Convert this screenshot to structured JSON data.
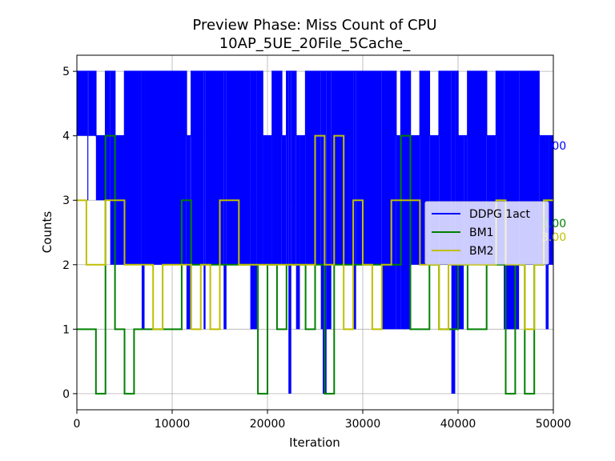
{
  "chart_data": {
    "type": "line",
    "title": "Preview Phase: Miss Count of CPU",
    "subtitle": "10AP_5UE_20File_5Cache_",
    "xlabel": "Iteration",
    "ylabel": "Counts",
    "xlim": [
      0,
      50000
    ],
    "ylim": [
      -0.25,
      5.25
    ],
    "xticks": [
      "0",
      "10000",
      "20000",
      "30000",
      "40000",
      "50000"
    ],
    "yticks": [
      "0",
      "1",
      "2",
      "3",
      "4",
      "5"
    ],
    "grid": true,
    "legend_position": "center-right",
    "series": [
      {
        "name": "DDPG 1act",
        "color": "#0000ff",
        "end_label": "4.00",
        "min_band": [
          [
            0,
            4
          ],
          [
            1100,
            3
          ],
          [
            1200,
            4
          ],
          [
            2000,
            3
          ],
          [
            3500,
            2
          ],
          [
            4200,
            2
          ],
          [
            6800,
            1
          ],
          [
            7100,
            2
          ],
          [
            11500,
            1
          ],
          [
            11900,
            2
          ],
          [
            13300,
            1
          ],
          [
            13500,
            2
          ],
          [
            15400,
            1
          ],
          [
            15700,
            2
          ],
          [
            18200,
            1
          ],
          [
            18900,
            2
          ],
          [
            22200,
            0
          ],
          [
            22500,
            2
          ],
          [
            23000,
            1
          ],
          [
            23400,
            2
          ],
          [
            25600,
            1
          ],
          [
            25800,
            0
          ],
          [
            26200,
            1
          ],
          [
            26700,
            2
          ],
          [
            29000,
            1
          ],
          [
            29300,
            2
          ],
          [
            32000,
            1
          ],
          [
            35000,
            2
          ],
          [
            39300,
            0
          ],
          [
            39700,
            1
          ],
          [
            40600,
            2
          ],
          [
            44800,
            1
          ],
          [
            46400,
            2
          ],
          [
            49200,
            1
          ],
          [
            49500,
            2
          ]
        ],
        "max_band": [
          [
            0,
            5
          ],
          [
            2000,
            4
          ],
          [
            3000,
            5
          ],
          [
            4000,
            4
          ],
          [
            5000,
            5
          ],
          [
            11500,
            4
          ],
          [
            12000,
            5
          ],
          [
            19500,
            4
          ],
          [
            20500,
            5
          ],
          [
            21500,
            4
          ],
          [
            22000,
            5
          ],
          [
            23000,
            4
          ],
          [
            24000,
            5
          ],
          [
            33500,
            4
          ],
          [
            34000,
            5
          ],
          [
            35000,
            4
          ],
          [
            36000,
            5
          ],
          [
            37000,
            4
          ],
          [
            38000,
            5
          ],
          [
            40000,
            4
          ],
          [
            41000,
            5
          ],
          [
            43000,
            4
          ],
          [
            44000,
            5
          ],
          [
            48500,
            4
          ],
          [
            50000,
            4
          ]
        ]
      },
      {
        "name": "BM1",
        "color": "#008000",
        "end_label": "3.00",
        "points": [
          [
            0,
            1
          ],
          [
            2000,
            1
          ],
          [
            2000,
            0
          ],
          [
            3000,
            0
          ],
          [
            3000,
            4
          ],
          [
            4000,
            4
          ],
          [
            4000,
            1
          ],
          [
            5000,
            1
          ],
          [
            5000,
            0
          ],
          [
            6000,
            0
          ],
          [
            6000,
            1
          ],
          [
            11000,
            1
          ],
          [
            11000,
            3
          ],
          [
            12000,
            3
          ],
          [
            12000,
            2
          ],
          [
            19000,
            2
          ],
          [
            19000,
            0
          ],
          [
            20000,
            0
          ],
          [
            20000,
            2
          ],
          [
            21000,
            2
          ],
          [
            21000,
            1
          ],
          [
            22000,
            1
          ],
          [
            22000,
            2
          ],
          [
            24000,
            2
          ],
          [
            24000,
            1
          ],
          [
            25000,
            1
          ],
          [
            25000,
            2
          ],
          [
            26000,
            2
          ],
          [
            26000,
            0
          ],
          [
            27000,
            0
          ],
          [
            27000,
            2
          ],
          [
            34000,
            2
          ],
          [
            34000,
            4
          ],
          [
            35000,
            4
          ],
          [
            35000,
            1
          ],
          [
            37000,
            1
          ],
          [
            37000,
            2
          ],
          [
            38000,
            2
          ],
          [
            38000,
            1
          ],
          [
            40000,
            1
          ],
          [
            40000,
            2
          ],
          [
            41000,
            2
          ],
          [
            41000,
            1
          ],
          [
            43000,
            1
          ],
          [
            43000,
            2
          ],
          [
            45000,
            2
          ],
          [
            45000,
            0
          ],
          [
            46000,
            0
          ],
          [
            46000,
            2
          ],
          [
            47000,
            2
          ],
          [
            47000,
            0
          ],
          [
            48000,
            0
          ],
          [
            48000,
            2
          ],
          [
            49000,
            2
          ],
          [
            49000,
            3
          ],
          [
            50000,
            3
          ]
        ]
      },
      {
        "name": "BM2",
        "color": "#bfbf00",
        "end_label": "3.00",
        "points": [
          [
            0,
            3
          ],
          [
            1000,
            3
          ],
          [
            1000,
            2
          ],
          [
            3000,
            2
          ],
          [
            3000,
            3
          ],
          [
            5000,
            3
          ],
          [
            5000,
            2
          ],
          [
            8000,
            2
          ],
          [
            8000,
            1
          ],
          [
            9000,
            1
          ],
          [
            9000,
            2
          ],
          [
            12000,
            2
          ],
          [
            12000,
            1
          ],
          [
            13000,
            1
          ],
          [
            13000,
            2
          ],
          [
            14000,
            2
          ],
          [
            14000,
            1
          ],
          [
            15000,
            1
          ],
          [
            15000,
            3
          ],
          [
            17000,
            3
          ],
          [
            17000,
            2
          ],
          [
            25000,
            2
          ],
          [
            25000,
            4
          ],
          [
            26000,
            4
          ],
          [
            26000,
            2
          ],
          [
            27000,
            2
          ],
          [
            27000,
            4
          ],
          [
            28000,
            4
          ],
          [
            28000,
            1
          ],
          [
            29000,
            1
          ],
          [
            29000,
            3
          ],
          [
            30000,
            3
          ],
          [
            30000,
            2
          ],
          [
            31000,
            2
          ],
          [
            31000,
            1
          ],
          [
            32000,
            1
          ],
          [
            32000,
            2
          ],
          [
            33000,
            2
          ],
          [
            33000,
            3
          ],
          [
            36000,
            3
          ],
          [
            36000,
            2
          ],
          [
            38000,
            2
          ],
          [
            38000,
            1
          ],
          [
            39000,
            1
          ],
          [
            39000,
            2
          ],
          [
            44000,
            2
          ],
          [
            44000,
            3
          ],
          [
            45000,
            3
          ],
          [
            45000,
            2
          ],
          [
            47000,
            2
          ],
          [
            47000,
            1
          ],
          [
            48000,
            1
          ],
          [
            48000,
            2
          ],
          [
            49000,
            2
          ],
          [
            49000,
            3
          ],
          [
            50000,
            3
          ]
        ]
      }
    ]
  }
}
